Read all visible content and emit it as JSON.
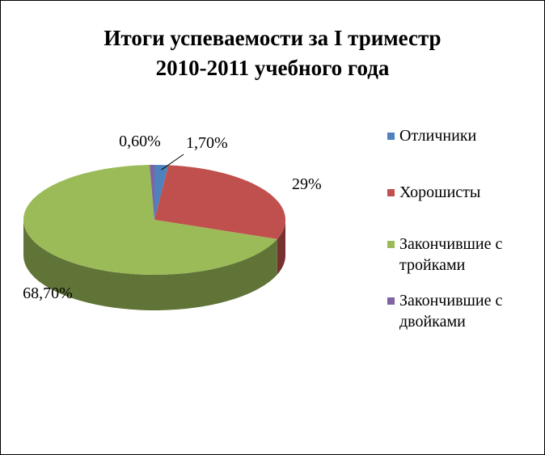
{
  "chart_data": {
    "type": "pie",
    "title": [
      "Итоги успеваемости за I триместр",
      "2010-2011 учебного года"
    ],
    "categories": [
      "Отличники",
      "Хорошисты",
      "Закончившие с тройками",
      "Закончившие с двойками"
    ],
    "values": [
      1.7,
      29,
      68.7,
      0.6
    ],
    "value_labels": [
      "1,70%",
      "29%",
      "68,70%",
      "0,60%"
    ],
    "colors": [
      "#4f81bd",
      "#c0504d",
      "#9bbb59",
      "#8064a2"
    ],
    "legend": "right"
  }
}
